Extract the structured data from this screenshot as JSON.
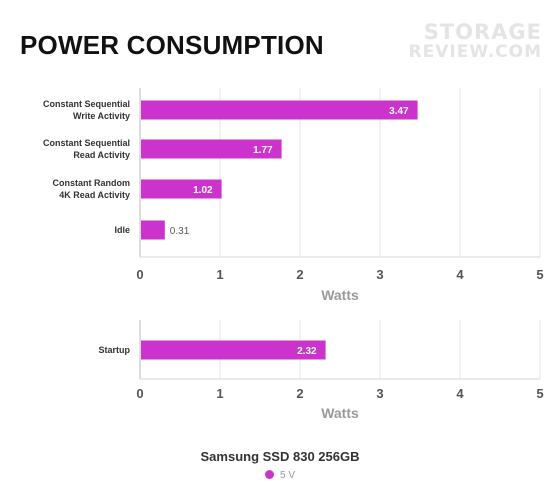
{
  "header": {
    "title": "POWER CONSUMPTION",
    "logo_line1": "STORAGE",
    "logo_line2": "REVIEW.COM"
  },
  "chart_data": [
    {
      "type": "bar",
      "orientation": "horizontal",
      "categories": [
        [
          "Constant Sequential",
          "Write Activity"
        ],
        [
          "Constant Sequential",
          "Read Activity"
        ],
        [
          "Constant Random",
          "4K Read Activity"
        ],
        [
          "Idle"
        ]
      ],
      "values": [
        3.47,
        1.77,
        1.02,
        0.31
      ],
      "value_labels": [
        "3.47",
        "1.77",
        "1.02",
        "0.31"
      ],
      "xlabel": "Watts",
      "xlim": [
        0,
        5
      ],
      "xticks": [
        "0",
        "1",
        "2",
        "3",
        "4",
        "5"
      ],
      "grid": true,
      "series": [
        {
          "name": "5 V",
          "color": "#cc33cc"
        }
      ]
    },
    {
      "type": "bar",
      "orientation": "horizontal",
      "categories": [
        [
          "Startup"
        ]
      ],
      "values": [
        2.32
      ],
      "value_labels": [
        "2.32"
      ],
      "xlabel": "Watts",
      "xlim": [
        0,
        5
      ],
      "xticks": [
        "0",
        "1",
        "2",
        "3",
        "4",
        "5"
      ],
      "grid": true,
      "series": [
        {
          "name": "5 V",
          "color": "#cc33cc"
        }
      ]
    }
  ],
  "legend": {
    "title": "Samsung SSD 830 256GB",
    "items": [
      {
        "label": "5 V",
        "color": "#cc33cc"
      }
    ]
  }
}
